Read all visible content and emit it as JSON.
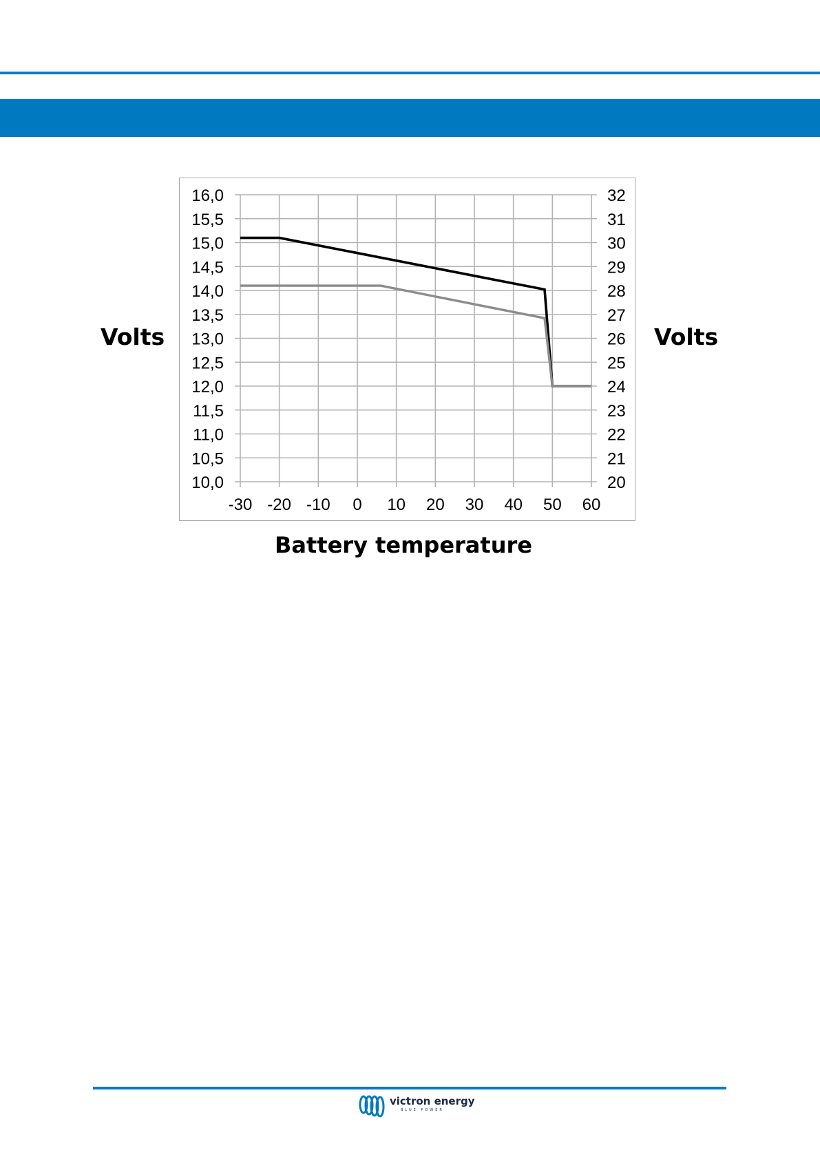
{
  "page": {
    "accent_color": "#0079c1"
  },
  "labels": {
    "left_axis": "Volts",
    "right_axis": "Volts",
    "x_axis": "Battery temperature"
  },
  "chart_data": {
    "type": "line",
    "title": "",
    "xlabel": "Battery temperature",
    "ylabel": "Volts",
    "y2label": "Volts",
    "xlim": [
      -30,
      60
    ],
    "ylim": [
      10.0,
      16.0
    ],
    "y2lim": [
      20,
      32
    ],
    "grid": true,
    "legend": "none",
    "x_ticks": [
      "-30",
      "-20",
      "-10",
      "0",
      "10",
      "20",
      "30",
      "40",
      "50",
      "60"
    ],
    "y_ticks": [
      "10,0",
      "10,5",
      "11,0",
      "11,5",
      "12,0",
      "12,5",
      "13,0",
      "13,5",
      "14,0",
      "14,5",
      "15,0",
      "15,5",
      "16,0"
    ],
    "y2_ticks": [
      "20",
      "21",
      "22",
      "23",
      "24",
      "25",
      "26",
      "27",
      "28",
      "29",
      "30",
      "31",
      "32"
    ],
    "series": [
      {
        "color": "#000000",
        "points": [
          [
            -30,
            15.1
          ],
          [
            -20,
            15.1
          ],
          [
            48,
            14.02
          ],
          [
            50,
            12.0
          ],
          [
            60,
            12.0
          ]
        ]
      },
      {
        "color": "#8c8c8c",
        "points": [
          [
            -30,
            14.1
          ],
          [
            6,
            14.1
          ],
          [
            48,
            13.42
          ],
          [
            50,
            12.0
          ],
          [
            60,
            12.0
          ]
        ]
      }
    ]
  },
  "footer": {
    "brand": "victron energy",
    "tagline": "BLUE POWER",
    "logo_color": "#0079c1"
  }
}
